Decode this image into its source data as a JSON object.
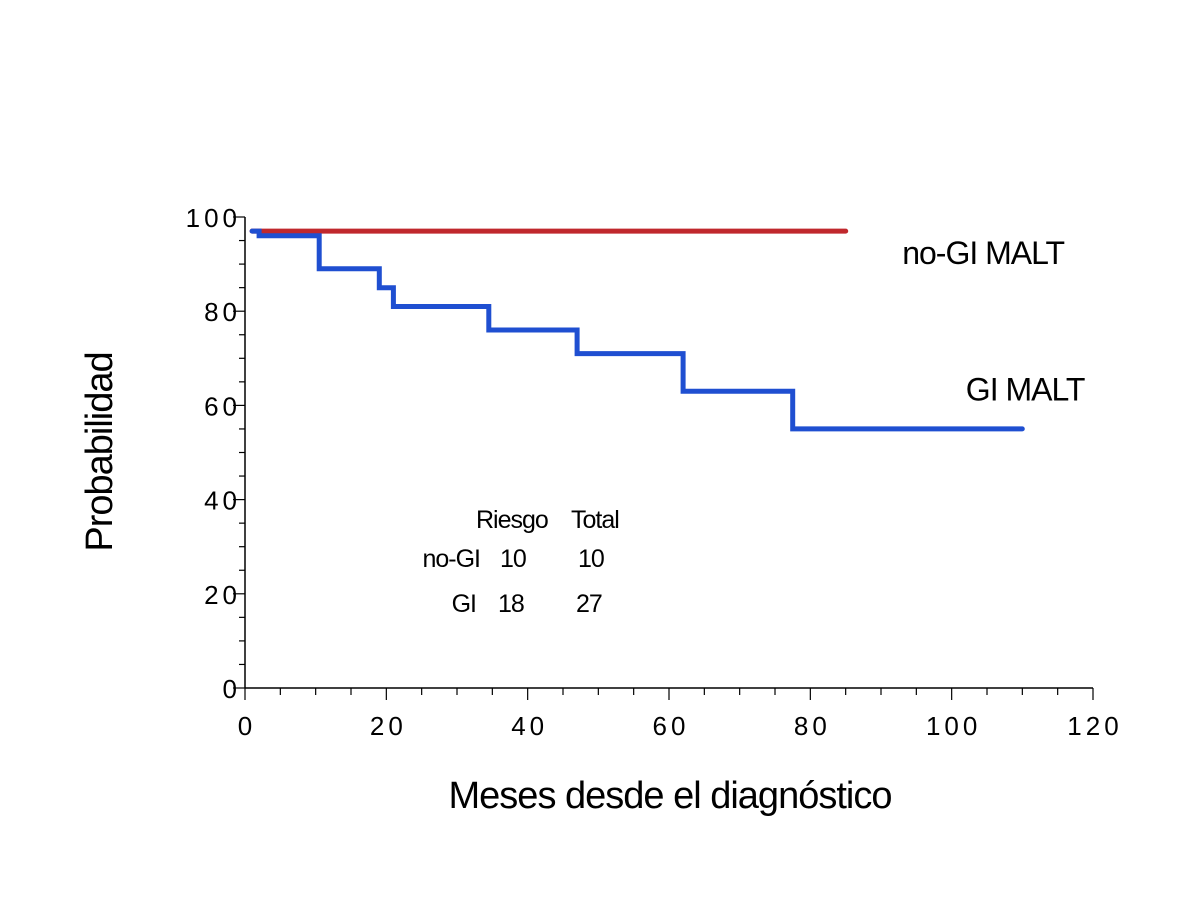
{
  "chart_data": {
    "type": "line",
    "step": true,
    "xlabel": "Meses desde el diagnóstico",
    "ylabel": "Probabilidad",
    "xlim": [
      0,
      120
    ],
    "ylim": [
      0,
      100
    ],
    "x_ticks": [
      0,
      20,
      40,
      60,
      80,
      100,
      120
    ],
    "x_tick_labels": [
      "0",
      "20",
      "40",
      "60",
      "80",
      "100",
      "120"
    ],
    "y_ticks": [
      0,
      20,
      40,
      60,
      80,
      100
    ],
    "y_tick_labels": [
      "0",
      "20",
      "40",
      "60",
      "80",
      "100"
    ],
    "grid": false,
    "series": [
      {
        "name": "no-GI MALT",
        "color": "#c0282d",
        "points": [
          [
            1,
            97
          ],
          [
            85,
            97
          ]
        ]
      },
      {
        "name": "GI MALT",
        "color": "#1f4fd1",
        "points": [
          [
            1,
            97
          ],
          [
            2,
            97
          ],
          [
            2,
            96
          ],
          [
            10.5,
            96
          ],
          [
            10.5,
            89
          ],
          [
            19,
            89
          ],
          [
            19,
            85
          ],
          [
            21,
            85
          ],
          [
            21,
            81
          ],
          [
            34.5,
            81
          ],
          [
            34.5,
            76
          ],
          [
            47,
            76
          ],
          [
            47,
            71
          ],
          [
            62,
            71
          ],
          [
            62,
            63
          ],
          [
            77.5,
            63
          ],
          [
            77.5,
            55
          ],
          [
            110,
            55
          ]
        ]
      }
    ],
    "annotations": [
      {
        "text": "no-GI MALT",
        "x": 93,
        "y": 90
      },
      {
        "text": "GI MALT",
        "x": 102,
        "y": 61
      }
    ],
    "risk_table": {
      "headers": [
        "Riesgo",
        "Total"
      ],
      "rows": [
        {
          "label": "no-GI",
          "riesgo": "10",
          "total": "10"
        },
        {
          "label": "GI",
          "riesgo": "18",
          "total": "27"
        }
      ]
    }
  }
}
